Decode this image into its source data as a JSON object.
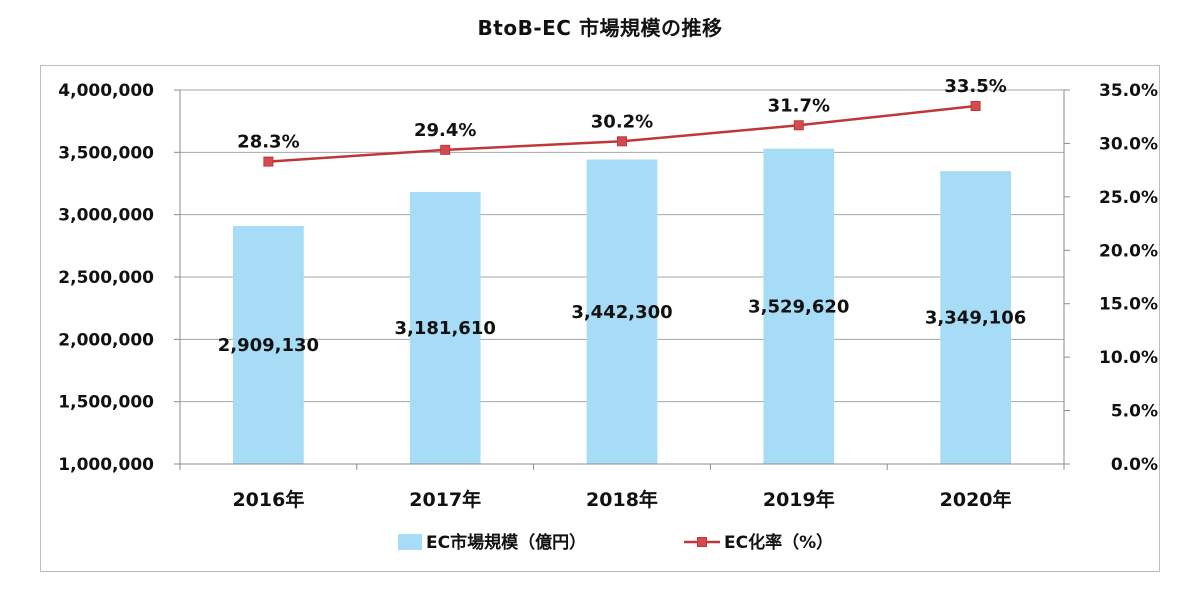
{
  "chart_data": {
    "type": "bar",
    "title": "BtoB-EC 市場規模の推移",
    "categories": [
      "2016年",
      "2017年",
      "2018年",
      "2019年",
      "2020年"
    ],
    "series": [
      {
        "name": "EC市場規模（億円）",
        "type": "bar",
        "axis": "left",
        "color": "#a6dcf6",
        "values": [
          2909130,
          3181610,
          3442300,
          3529620,
          3349106
        ],
        "labels": [
          "2,909,130",
          "3,181,610",
          "3,442,300",
          "3,529,620",
          "3,349,106"
        ]
      },
      {
        "name": "EC化率（%）",
        "type": "line",
        "axis": "right",
        "color": "#c0373a",
        "values": [
          28.3,
          29.4,
          30.2,
          31.7,
          33.5
        ],
        "labels": [
          "28.3%",
          "29.4%",
          "30.2%",
          "31.7%",
          "33.5%"
        ]
      }
    ],
    "y_left": {
      "ylim": [
        1000000,
        4000000
      ],
      "ticks": [
        1000000,
        1500000,
        2000000,
        2500000,
        3000000,
        3500000,
        4000000
      ],
      "tick_labels": [
        "1,000,000",
        "1,500,000",
        "2,000,000",
        "2,500,000",
        "3,000,000",
        "3,500,000",
        "4,000,000"
      ]
    },
    "y_right": {
      "ylim": [
        0,
        35
      ],
      "ticks": [
        0,
        5,
        10,
        15,
        20,
        25,
        30,
        35
      ],
      "tick_labels": [
        "0.0%",
        "5.0%",
        "10.0%",
        "15.0%",
        "20.0%",
        "25.0%",
        "30.0%",
        "35.0%"
      ]
    },
    "grid": true,
    "legend": "bottom"
  }
}
